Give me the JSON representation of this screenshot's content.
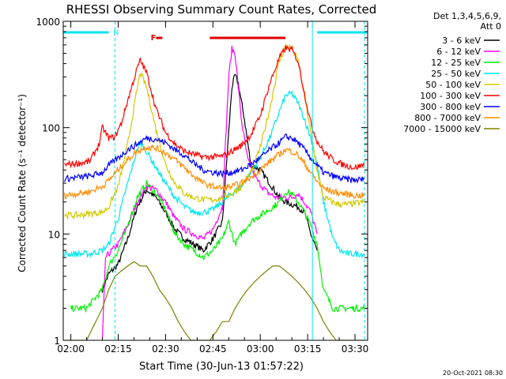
{
  "chart_data": {
    "type": "line",
    "title": "RHESSI Observing Summary Count Rates, Corrected",
    "xlabel": "Start Time (30-Jun-13 01:57:22)",
    "ylabel": "Corrected Count Rate (s⁻¹ detector⁻¹)",
    "yscale": "log",
    "ylim": [
      1,
      1000
    ],
    "xlim_minutes": [
      -2.4,
      94
    ],
    "x_ticks": [
      "02:00",
      "02:15",
      "02:30",
      "02:45",
      "03:00",
      "03:15",
      "03:30"
    ],
    "x_tick_minutes": [
      0,
      15,
      30,
      45,
      60,
      75,
      90
    ],
    "y_ticks": [
      "1",
      "10",
      "100",
      "1000"
    ],
    "y_tick_values": [
      1,
      10,
      100,
      1000
    ],
    "legend_header": [
      "Det 1,3,4,5,6,9,",
      "Att 0"
    ],
    "legend_placement": "right",
    "timestamp": "20-Oct-2021 08:30",
    "annotations": {
      "flare_label": "F",
      "night_label": "N",
      "flare_color": "#e00000",
      "saa_color": "#00e5ee"
    },
    "flag_bars": [
      {
        "name": "F",
        "color": "#e00000",
        "x": [
          27,
          29
        ]
      },
      {
        "name": "F",
        "color": "#e00000",
        "x": [
          44,
          68
        ]
      },
      {
        "name": "N",
        "color": "#00e5ee",
        "x": [
          -2.4,
          12
        ]
      },
      {
        "name": "N",
        "color": "#00e5ee",
        "x": [
          78,
          94
        ]
      }
    ],
    "gap_lines_minutes": [
      -2.4,
      14,
      76.5,
      93
    ],
    "series": [
      {
        "name": "3 - 6 keV",
        "color": "#000000",
        "seg": [
          [
            10,
            3
          ],
          [
            12,
            4.2
          ],
          [
            15,
            5.2
          ],
          [
            18,
            9
          ],
          [
            21,
            18
          ],
          [
            24,
            26
          ],
          [
            27,
            22
          ],
          [
            30,
            16
          ],
          [
            33,
            11
          ],
          [
            36,
            9
          ],
          [
            39,
            8
          ],
          [
            42,
            7
          ],
          [
            45,
            9
          ],
          [
            48,
            13
          ],
          [
            51,
            240
          ],
          [
            52,
            310
          ],
          [
            53,
            260
          ],
          [
            55,
            120
          ],
          [
            57,
            45
          ],
          [
            60,
            40
          ],
          [
            63,
            30
          ],
          [
            66,
            22
          ],
          [
            68,
            20
          ],
          [
            70,
            19
          ],
          [
            72,
            18
          ],
          [
            74,
            16
          ],
          [
            76,
            10
          ],
          [
            78,
            7
          ]
        ]
      },
      {
        "name": "6 - 12 keV",
        "color": "#ff00ff",
        "seg": [
          [
            10,
            1
          ],
          [
            11,
            6
          ],
          [
            13,
            7
          ],
          [
            15,
            8
          ],
          [
            18,
            12
          ],
          [
            21,
            20
          ],
          [
            24,
            28
          ],
          [
            27,
            26
          ],
          [
            30,
            20
          ],
          [
            33,
            14
          ],
          [
            36,
            11
          ],
          [
            39,
            10
          ],
          [
            42,
            9
          ],
          [
            45,
            11
          ],
          [
            48,
            18
          ],
          [
            50,
            300
          ],
          [
            51,
            550
          ],
          [
            52,
            500
          ],
          [
            54,
            120
          ],
          [
            56,
            50
          ],
          [
            59,
            32
          ],
          [
            62,
            25
          ],
          [
            65,
            22
          ],
          [
            68,
            22
          ],
          [
            70,
            22
          ],
          [
            72,
            24
          ],
          [
            74,
            20
          ],
          [
            76,
            16
          ],
          [
            78,
            10
          ]
        ]
      },
      {
        "name": "12 - 25 keV",
        "color": "#00ee00",
        "seg": [
          [
            0,
            2
          ],
          [
            5,
            2
          ],
          [
            10,
            3
          ],
          [
            12,
            5
          ],
          [
            15,
            7
          ],
          [
            18,
            12
          ],
          [
            21,
            22
          ],
          [
            24,
            30
          ],
          [
            27,
            24
          ],
          [
            30,
            17
          ],
          [
            33,
            10
          ],
          [
            36,
            8
          ],
          [
            39,
            7
          ],
          [
            42,
            6
          ],
          [
            45,
            7
          ],
          [
            48,
            9
          ],
          [
            50,
            13
          ],
          [
            52,
            8
          ],
          [
            54,
            10
          ],
          [
            57,
            13
          ],
          [
            60,
            15
          ],
          [
            63,
            17
          ],
          [
            66,
            20
          ],
          [
            68,
            25
          ],
          [
            70,
            24
          ],
          [
            72,
            20
          ],
          [
            74,
            16
          ],
          [
            76,
            12
          ],
          [
            78,
            8
          ],
          [
            80,
            3
          ],
          [
            83,
            2
          ],
          [
            86,
            2
          ],
          [
            90,
            2
          ],
          [
            93,
            2
          ]
        ]
      },
      {
        "name": "25 - 50 keV",
        "color": "#00e5ee",
        "seg": [
          [
            -2,
            6.5
          ],
          [
            2,
            6.5
          ],
          [
            6,
            6.5
          ],
          [
            10,
            7
          ],
          [
            12,
            8
          ],
          [
            15,
            14
          ],
          [
            18,
            30
          ],
          [
            21,
            62
          ],
          [
            22,
            72
          ],
          [
            24,
            60
          ],
          [
            27,
            42
          ],
          [
            30,
            30
          ],
          [
            33,
            22
          ],
          [
            36,
            18
          ],
          [
            39,
            16
          ],
          [
            42,
            16
          ],
          [
            45,
            17
          ],
          [
            48,
            20
          ],
          [
            51,
            24
          ],
          [
            54,
            28
          ],
          [
            57,
            38
          ],
          [
            60,
            52
          ],
          [
            63,
            80
          ],
          [
            66,
            140
          ],
          [
            68,
            200
          ],
          [
            70,
            210
          ],
          [
            72,
            170
          ],
          [
            74,
            120
          ],
          [
            76,
            80
          ],
          [
            78,
            45
          ],
          [
            80,
            20
          ],
          [
            83,
            9
          ],
          [
            85,
            7
          ],
          [
            88,
            6.5
          ],
          [
            93,
            6.5
          ]
        ]
      },
      {
        "name": "50 - 100 keV",
        "color": "#d2c800",
        "seg": [
          [
            -2,
            15
          ],
          [
            2,
            15
          ],
          [
            6,
            15.5
          ],
          [
            10,
            16
          ],
          [
            12,
            18
          ],
          [
            15,
            28
          ],
          [
            18,
            70
          ],
          [
            21,
            230
          ],
          [
            22,
            330
          ],
          [
            24,
            240
          ],
          [
            27,
            95
          ],
          [
            30,
            45
          ],
          [
            33,
            30
          ],
          [
            36,
            24
          ],
          [
            39,
            22
          ],
          [
            42,
            21
          ],
          [
            45,
            21
          ],
          [
            48,
            22
          ],
          [
            51,
            24
          ],
          [
            54,
            28
          ],
          [
            57,
            38
          ],
          [
            60,
            65
          ],
          [
            63,
            150
          ],
          [
            66,
            420
          ],
          [
            68,
            580
          ],
          [
            70,
            560
          ],
          [
            72,
            420
          ],
          [
            74,
            200
          ],
          [
            76,
            90
          ],
          [
            78,
            40
          ],
          [
            80,
            22
          ],
          [
            83,
            20
          ],
          [
            85,
            19
          ],
          [
            88,
            19
          ],
          [
            93,
            20
          ]
        ]
      },
      {
        "name": "100 - 300 keV",
        "color": "#ff0000",
        "seg": [
          [
            -2,
            45
          ],
          [
            2,
            46
          ],
          [
            6,
            48
          ],
          [
            9,
            70
          ],
          [
            10,
            100
          ],
          [
            12,
            80
          ],
          [
            14,
            82
          ],
          [
            16,
            110
          ],
          [
            18,
            180
          ],
          [
            21,
            360
          ],
          [
            22,
            430
          ],
          [
            24,
            330
          ],
          [
            27,
            150
          ],
          [
            30,
            90
          ],
          [
            33,
            70
          ],
          [
            36,
            60
          ],
          [
            39,
            56
          ],
          [
            42,
            53
          ],
          [
            45,
            53
          ],
          [
            48,
            54
          ],
          [
            51,
            60
          ],
          [
            54,
            68
          ],
          [
            57,
            85
          ],
          [
            60,
            130
          ],
          [
            63,
            260
          ],
          [
            66,
            450
          ],
          [
            68,
            560
          ],
          [
            70,
            540
          ],
          [
            72,
            420
          ],
          [
            74,
            210
          ],
          [
            76,
            110
          ],
          [
            78,
            75
          ],
          [
            80,
            60
          ],
          [
            83,
            50
          ],
          [
            86,
            45
          ],
          [
            90,
            42
          ],
          [
            93,
            45
          ]
        ]
      },
      {
        "name": "300 - 800 keV",
        "color": "#0000ff",
        "seg": [
          [
            -2,
            33
          ],
          [
            2,
            34
          ],
          [
            6,
            35
          ],
          [
            10,
            38
          ],
          [
            12,
            44
          ],
          [
            15,
            52
          ],
          [
            18,
            62
          ],
          [
            21,
            70
          ],
          [
            24,
            80
          ],
          [
            27,
            78
          ],
          [
            30,
            72
          ],
          [
            33,
            62
          ],
          [
            36,
            55
          ],
          [
            39,
            46
          ],
          [
            42,
            40
          ],
          [
            45,
            38
          ],
          [
            48,
            37
          ],
          [
            51,
            38
          ],
          [
            54,
            40
          ],
          [
            57,
            45
          ],
          [
            60,
            52
          ],
          [
            63,
            62
          ],
          [
            66,
            72
          ],
          [
            68,
            82
          ],
          [
            70,
            80
          ],
          [
            72,
            72
          ],
          [
            74,
            62
          ],
          [
            76,
            52
          ],
          [
            78,
            44
          ],
          [
            80,
            38
          ],
          [
            83,
            35
          ],
          [
            86,
            33
          ],
          [
            90,
            32
          ],
          [
            93,
            33
          ]
        ]
      },
      {
        "name": "800 - 7000 keV",
        "color": "#ff8c00",
        "seg": [
          [
            -2,
            23
          ],
          [
            2,
            24
          ],
          [
            6,
            25
          ],
          [
            10,
            28
          ],
          [
            12,
            32
          ],
          [
            15,
            40
          ],
          [
            18,
            50
          ],
          [
            21,
            60
          ],
          [
            24,
            66
          ],
          [
            27,
            64
          ],
          [
            30,
            58
          ],
          [
            33,
            50
          ],
          [
            36,
            42
          ],
          [
            39,
            35
          ],
          [
            42,
            30
          ],
          [
            45,
            28
          ],
          [
            48,
            27
          ],
          [
            51,
            28
          ],
          [
            54,
            30
          ],
          [
            57,
            34
          ],
          [
            60,
            40
          ],
          [
            63,
            48
          ],
          [
            66,
            56
          ],
          [
            68,
            62
          ],
          [
            70,
            60
          ],
          [
            72,
            55
          ],
          [
            74,
            46
          ],
          [
            76,
            38
          ],
          [
            78,
            31
          ],
          [
            80,
            27
          ],
          [
            83,
            25
          ],
          [
            86,
            24
          ],
          [
            90,
            23
          ],
          [
            93,
            23
          ]
        ]
      },
      {
        "name": "7000 - 15000 keV",
        "color": "#808000",
        "seg": [
          [
            -2,
            1
          ],
          [
            5,
            1
          ],
          [
            10,
            2
          ],
          [
            12,
            3
          ],
          [
            14,
            4
          ],
          [
            16,
            4.5
          ],
          [
            18,
            5
          ],
          [
            20,
            5.5
          ],
          [
            22,
            5
          ],
          [
            24,
            5
          ],
          [
            26,
            4
          ],
          [
            28,
            3
          ],
          [
            30,
            2.5
          ],
          [
            32,
            2
          ],
          [
            34,
            1.5
          ],
          [
            36,
            1.2
          ],
          [
            38,
            1
          ],
          [
            40,
            1
          ],
          [
            44,
            1
          ],
          [
            46,
            1.2
          ],
          [
            48,
            1.5
          ],
          [
            50,
            1.5
          ],
          [
            52,
            2
          ],
          [
            54,
            2.5
          ],
          [
            56,
            3
          ],
          [
            58,
            3.5
          ],
          [
            60,
            4
          ],
          [
            62,
            4.5
          ],
          [
            64,
            5
          ],
          [
            66,
            5
          ],
          [
            68,
            4.5
          ],
          [
            70,
            4
          ],
          [
            72,
            3.5
          ],
          [
            74,
            3
          ],
          [
            76,
            2.5
          ],
          [
            78,
            2
          ],
          [
            80,
            1.5
          ],
          [
            82,
            1.2
          ],
          [
            84,
            1
          ],
          [
            90,
            1
          ],
          [
            93,
            1
          ]
        ]
      }
    ]
  }
}
